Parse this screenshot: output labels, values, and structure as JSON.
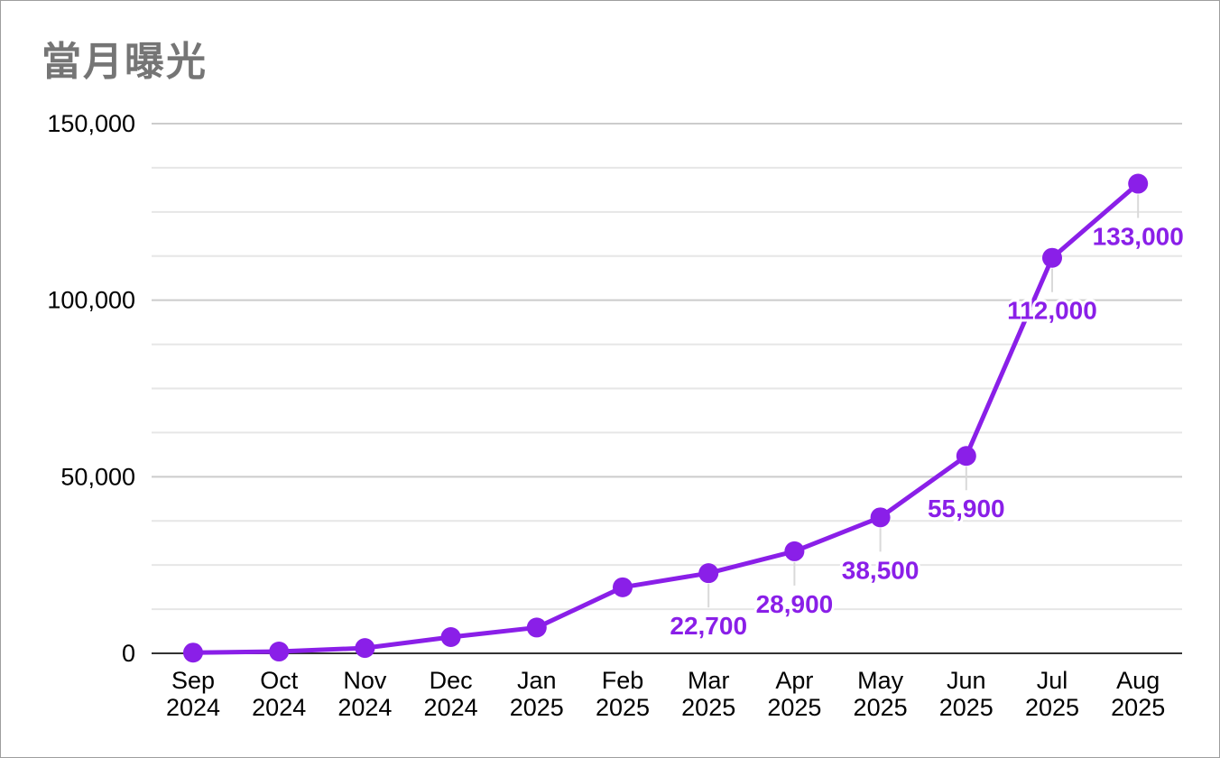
{
  "chart_data": {
    "type": "line",
    "title": "當月曝光",
    "xlabel": "",
    "ylabel": "",
    "categories": [
      [
        "Sep",
        "2024"
      ],
      [
        "Oct",
        "2024"
      ],
      [
        "Nov",
        "2024"
      ],
      [
        "Dec",
        "2024"
      ],
      [
        "Jan",
        "2025"
      ],
      [
        "Feb",
        "2025"
      ],
      [
        "Mar",
        "2025"
      ],
      [
        "Apr",
        "2025"
      ],
      [
        "May",
        "2025"
      ],
      [
        "Jun",
        "2025"
      ],
      [
        "Jul",
        "2025"
      ],
      [
        "Aug",
        "2025"
      ]
    ],
    "series": [
      {
        "values": [
          200,
          500,
          1500,
          4600,
          7300,
          18700,
          22700,
          28900,
          38500,
          55900,
          112000,
          133000
        ],
        "data_labels": [
          "",
          "",
          "",
          "",
          "",
          "",
          "22,700",
          "28,900",
          "38,500",
          "55,900",
          "112,000",
          "133,000"
        ],
        "color": "#8a1fe8"
      }
    ],
    "ylim": [
      0,
      150000
    ],
    "yticks": [
      0,
      50000,
      100000,
      150000
    ],
    "ytick_labels": [
      "0",
      "50,000",
      "100,000",
      "150,000"
    ],
    "minor_gridlines_per_major": 3,
    "grid": true,
    "legend": "none"
  }
}
